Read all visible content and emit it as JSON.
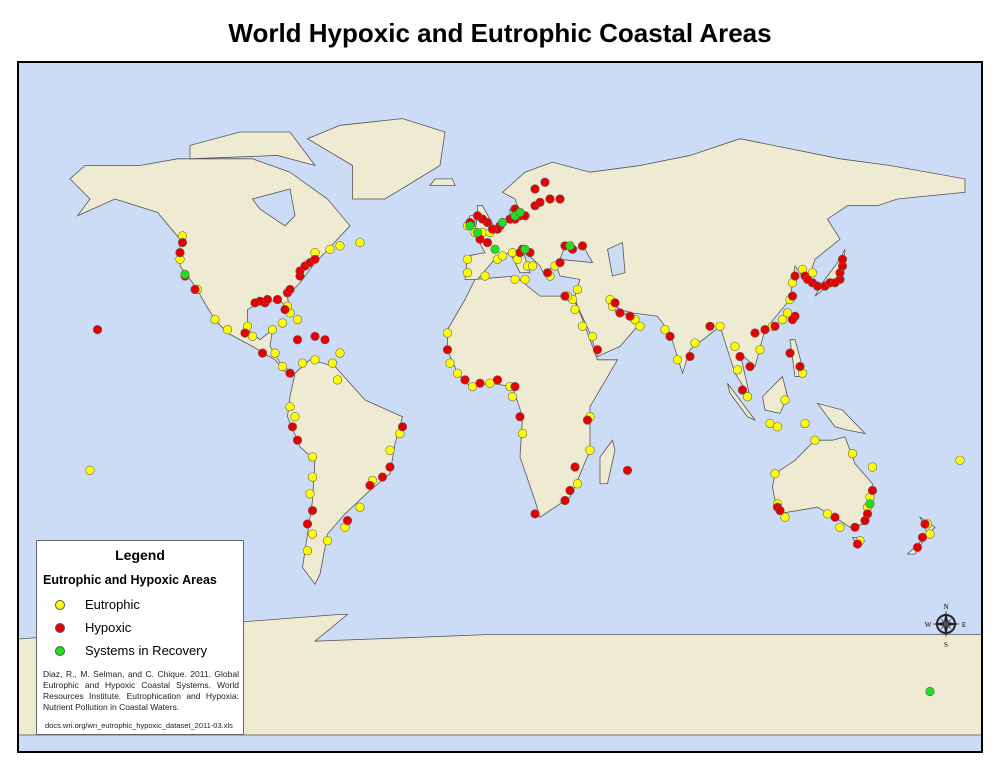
{
  "title": "World Hypoxic and Eutrophic Coastal Areas",
  "colors": {
    "ocean": "#cddcf6",
    "land": "#efebd2",
    "eutrophic": "#ffff00",
    "hypoxic": "#e60000",
    "recovery": "#22dd22"
  },
  "legend": {
    "title": "Legend",
    "subtitle": "Eutrophic and Hypoxic Areas",
    "items": [
      {
        "label": "Eutrophic",
        "type": "E"
      },
      {
        "label": "Hypoxic",
        "type": "H"
      },
      {
        "label": "Systems in Recovery",
        "type": "R"
      }
    ],
    "citation": "Diaz, R., M. Selman, and C. Chique. 2011. Global Eutrophic and Hypoxic Coastal Systems. World Resources Institute. Eutrophication and Hypoxia: Nutrient Pollution in Coastal Waters.",
    "source_url": "docs.wri.org/wri_eutrophic_hypoxic_dataset_2011-03.xls"
  },
  "compass": {
    "n": "N",
    "s": "S",
    "e": "E",
    "w": "W",
    "icon": "compass-rose-icon"
  },
  "sites": {
    "H": [
      [
        -76,
        37
      ],
      [
        -76,
        38.5
      ],
      [
        -74,
        40
      ],
      [
        -72,
        41
      ],
      [
        -70,
        42
      ],
      [
        -81,
        32
      ],
      [
        -80,
        33
      ],
      [
        -90,
        29
      ],
      [
        -92,
        29.5
      ],
      [
        -89,
        30
      ],
      [
        -94,
        29
      ],
      [
        -82,
        27
      ],
      [
        -85,
        30
      ],
      [
        -123,
        47
      ],
      [
        -124,
        44
      ],
      [
        -122,
        37
      ],
      [
        -118,
        33
      ],
      [
        -157,
        21
      ],
      [
        -66,
        18
      ],
      [
        -70,
        19
      ],
      [
        -77,
        18
      ],
      [
        -80,
        8
      ],
      [
        -91,
        14
      ],
      [
        -98,
        20
      ],
      [
        -79,
        -8
      ],
      [
        -77,
        -12
      ],
      [
        -71,
        -33
      ],
      [
        -73,
        -37
      ],
      [
        -57,
        -36
      ],
      [
        -48,
        -25.5
      ],
      [
        -40,
        -20
      ],
      [
        -35,
        -8
      ],
      [
        -43,
        -23
      ],
      [
        10,
        57
      ],
      [
        12,
        55
      ],
      [
        14,
        55
      ],
      [
        18,
        58
      ],
      [
        20,
        59
      ],
      [
        24,
        60
      ],
      [
        22,
        65
      ],
      [
        18,
        63
      ],
      [
        28,
        60
      ],
      [
        10,
        54
      ],
      [
        8,
        54
      ],
      [
        4,
        52
      ],
      [
        3,
        51
      ],
      [
        1,
        51
      ],
      [
        -1,
        53
      ],
      [
        -3,
        54
      ],
      [
        -5,
        55
      ],
      [
        -8,
        53
      ],
      [
        -1,
        47
      ],
      [
        -4,
        48
      ],
      [
        16,
        44
      ],
      [
        13,
        45
      ],
      [
        12,
        44
      ],
      [
        30,
        46
      ],
      [
        33,
        45
      ],
      [
        37,
        46
      ],
      [
        28,
        41
      ],
      [
        23,
        38
      ],
      [
        30,
        31
      ],
      [
        50,
        29
      ],
      [
        52,
        26
      ],
      [
        56,
        25
      ],
      [
        43,
        15
      ],
      [
        72,
        19
      ],
      [
        80,
        13
      ],
      [
        88,
        22
      ],
      [
        100,
        13
      ],
      [
        101,
        3
      ],
      [
        104,
        10
      ],
      [
        106,
        20
      ],
      [
        110,
        21
      ],
      [
        114,
        22
      ],
      [
        121,
        31
      ],
      [
        122,
        37
      ],
      [
        126,
        37
      ],
      [
        129,
        35
      ],
      [
        131,
        34
      ],
      [
        134,
        34
      ],
      [
        136,
        35
      ],
      [
        138,
        35
      ],
      [
        140,
        36
      ],
      [
        140,
        38
      ],
      [
        141,
        40
      ],
      [
        141,
        42
      ],
      [
        127,
        36
      ],
      [
        120,
        14
      ],
      [
        124,
        10
      ],
      [
        122,
        25
      ],
      [
        121,
        24
      ],
      [
        -17,
        15
      ],
      [
        -10,
        6
      ],
      [
        -4,
        5
      ],
      [
        3,
        6
      ],
      [
        10,
        4
      ],
      [
        12,
        -5
      ],
      [
        18,
        -34
      ],
      [
        30,
        -30
      ],
      [
        39,
        -6
      ],
      [
        32,
        -27
      ],
      [
        34,
        -20
      ],
      [
        55,
        -21
      ],
      [
        115,
        -32
      ],
      [
        116,
        -33
      ],
      [
        138,
        -35
      ],
      [
        151,
        -34
      ],
      [
        150,
        -36
      ],
      [
        146,
        -38
      ],
      [
        153,
        -27
      ],
      [
        147,
        -43
      ],
      [
        174,
        -37
      ],
      [
        173,
        -41
      ],
      [
        171,
        -44
      ]
    ],
    "E": [
      [
        -123,
        49
      ],
      [
        -124,
        42
      ],
      [
        -117,
        33
      ],
      [
        -110,
        24
      ],
      [
        -105,
        21
      ],
      [
        -97,
        22
      ],
      [
        -87,
        21
      ],
      [
        -83,
        23
      ],
      [
        -77,
        24
      ],
      [
        -80,
        26
      ],
      [
        -81,
        28
      ],
      [
        -70,
        44
      ],
      [
        -64,
        45
      ],
      [
        -60,
        46
      ],
      [
        -52,
        47
      ],
      [
        -95,
        19
      ],
      [
        -86,
        14
      ],
      [
        -83,
        10
      ],
      [
        -75,
        11
      ],
      [
        -70,
        12
      ],
      [
        -63,
        11
      ],
      [
        -60,
        14
      ],
      [
        -61,
        6
      ],
      [
        -80,
        -2
      ],
      [
        -78,
        -5
      ],
      [
        -71,
        -17
      ],
      [
        -71,
        -23
      ],
      [
        -72,
        -28
      ],
      [
        -71,
        -40
      ],
      [
        -73,
        -45
      ],
      [
        -65,
        -42
      ],
      [
        -58,
        -38
      ],
      [
        -52,
        -32
      ],
      [
        -47,
        -24
      ],
      [
        -40,
        -15
      ],
      [
        -36,
        -10
      ],
      [
        -160,
        -21
      ],
      [
        -9,
        38
      ],
      [
        -9,
        42
      ],
      [
        -2,
        37
      ],
      [
        3,
        42
      ],
      [
        5,
        43
      ],
      [
        9,
        44
      ],
      [
        11,
        42
      ],
      [
        15,
        40
      ],
      [
        17,
        40
      ],
      [
        24,
        37
      ],
      [
        26,
        40
      ],
      [
        35,
        33
      ],
      [
        34,
        27
      ],
      [
        33,
        30
      ],
      [
        -6,
        50
      ],
      [
        -3,
        50
      ],
      [
        0,
        50
      ],
      [
        5,
        53
      ],
      [
        -9,
        52
      ],
      [
        10,
        36
      ],
      [
        14,
        36
      ],
      [
        31,
        31
      ],
      [
        70,
        21
      ],
      [
        75,
        12
      ],
      [
        82,
        17
      ],
      [
        92,
        22
      ],
      [
        98,
        16
      ],
      [
        99,
        9
      ],
      [
        103,
        1
      ],
      [
        108,
        15
      ],
      [
        113,
        22
      ],
      [
        117,
        24
      ],
      [
        119,
        26
      ],
      [
        120,
        30
      ],
      [
        121,
        35
      ],
      [
        125,
        39
      ],
      [
        129,
        38
      ],
      [
        125,
        8
      ],
      [
        118,
        0
      ],
      [
        112,
        -7
      ],
      [
        115,
        -8
      ],
      [
        126,
        -7
      ],
      [
        58,
        24
      ],
      [
        60,
        22
      ],
      [
        49,
        28
      ],
      [
        48,
        30
      ],
      [
        41,
        19
      ],
      [
        37,
        22
      ],
      [
        -17,
        20
      ],
      [
        -16,
        11
      ],
      [
        -13,
        8
      ],
      [
        -7,
        4
      ],
      [
        0,
        5
      ],
      [
        8,
        4
      ],
      [
        9,
        1
      ],
      [
        40,
        -5
      ],
      [
        40,
        -15
      ],
      [
        35,
        -25
      ],
      [
        13,
        -10
      ],
      [
        114,
        -22
      ],
      [
        115,
        -31
      ],
      [
        118,
        -35
      ],
      [
        135,
        -34
      ],
      [
        140,
        -38
      ],
      [
        151,
        -32
      ],
      [
        152,
        -29
      ],
      [
        153,
        -20
      ],
      [
        145,
        -16
      ],
      [
        130,
        -12
      ],
      [
        148,
        -42
      ],
      [
        175,
        -37
      ],
      [
        176,
        -40
      ],
      [
        188,
        -18
      ]
    ],
    "R": [
      [
        -122,
        37.5
      ],
      [
        -8,
        52
      ],
      [
        -5,
        50
      ],
      [
        5,
        53
      ],
      [
        10,
        55
      ],
      [
        12,
        56
      ],
      [
        2,
        45
      ],
      [
        14,
        45
      ],
      [
        32,
        46
      ],
      [
        152,
        -31
      ],
      [
        176,
        -87
      ]
    ]
  }
}
